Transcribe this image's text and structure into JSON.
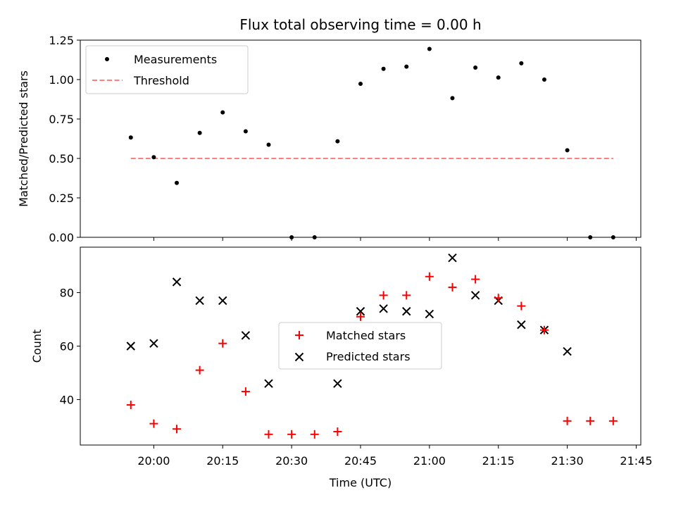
{
  "figure": {
    "title": "Flux total observing time = 0.00 h"
  },
  "chart_data": [
    {
      "type": "scatter",
      "ylabel": "Matched/Predicted stars",
      "ylim": [
        0,
        1.25
      ],
      "yticks": [
        "0.00",
        "0.25",
        "0.50",
        "0.75",
        "1.00",
        "1.25"
      ],
      "xlim_minutes": [
        1184,
        1306
      ],
      "xticks_minutes": [
        1200,
        1215,
        1230,
        1245,
        1260,
        1275,
        1290,
        1305
      ],
      "legend": {
        "placement": "upper left",
        "measurements": "Measurements",
        "threshold": "Threshold"
      },
      "colors": {
        "measurements": "#000000",
        "threshold": "#ff7f7f"
      },
      "threshold": {
        "value": 0.5,
        "x_start": "19:55",
        "x_end": "21:40"
      },
      "series": [
        {
          "name": "Measurements",
          "x": [
            "19:55",
            "20:00",
            "20:05",
            "20:10",
            "20:15",
            "20:20",
            "20:25",
            "20:30",
            "20:35",
            "20:40",
            "20:45",
            "20:50",
            "20:55",
            "21:00",
            "21:05",
            "21:10",
            "21:15",
            "21:20",
            "21:25",
            "21:30",
            "21:35",
            "21:40"
          ],
          "values": [
            0.633,
            0.508,
            0.345,
            0.662,
            0.792,
            0.672,
            0.587,
            0.0,
            0.0,
            0.609,
            0.973,
            1.068,
            1.082,
            1.194,
            0.882,
            1.076,
            1.013,
            1.103,
            1.0,
            0.552,
            0.0,
            0.0
          ]
        }
      ]
    },
    {
      "type": "scatter",
      "xlabel": "Time (UTC)",
      "ylabel": "Count",
      "ylim": [
        23,
        97
      ],
      "yticks": [
        "40",
        "60",
        "80"
      ],
      "xticks": [
        "20:00",
        "20:15",
        "20:30",
        "20:45",
        "21:00",
        "21:15",
        "21:30",
        "21:45"
      ],
      "legend": {
        "placement": "center",
        "matched": "Matched stars",
        "predicted": "Predicted stars"
      },
      "colors": {
        "matched": "#ff0000",
        "predicted": "#000000"
      },
      "series": [
        {
          "name": "Matched stars",
          "x": [
            "19:55",
            "20:00",
            "20:05",
            "20:10",
            "20:15",
            "20:20",
            "20:25",
            "20:30",
            "20:35",
            "20:40",
            "20:45",
            "20:50",
            "20:55",
            "21:00",
            "21:05",
            "21:10",
            "21:15",
            "21:20",
            "21:25",
            "21:30",
            "21:35",
            "21:40"
          ],
          "values": [
            38,
            31,
            29,
            51,
            61,
            43,
            27,
            27,
            27,
            28,
            71,
            79,
            79,
            86,
            82,
            85,
            78,
            75,
            66,
            32,
            32,
            32
          ]
        },
        {
          "name": "Predicted stars",
          "x": [
            "19:55",
            "20:00",
            "20:05",
            "20:10",
            "20:15",
            "20:20",
            "20:25",
            "20:40",
            "20:45",
            "20:50",
            "20:55",
            "21:00",
            "21:05",
            "21:10",
            "21:15",
            "21:20",
            "21:25",
            "21:30"
          ],
          "values": [
            60,
            61,
            84,
            77,
            77,
            64,
            46,
            46,
            73,
            74,
            73,
            72,
            93,
            79,
            77,
            68,
            66,
            58
          ]
        }
      ]
    }
  ]
}
